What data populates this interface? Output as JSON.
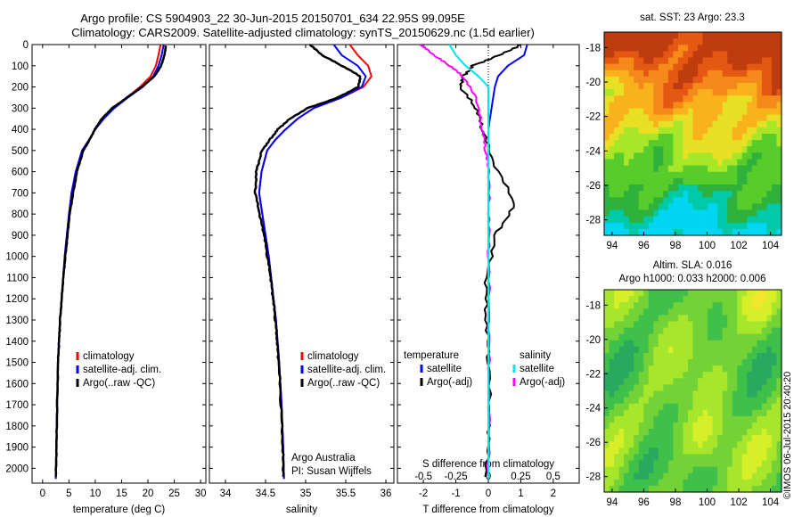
{
  "title_line1": "Argo profile: CS 5904903_22 30-Jun-2015 20150701_634 22.95S 99.095E",
  "title_line2": "Climatology: CARS2009. Satellite-adjusted climatology: synTS_20150629.nc (1.5d earlier)",
  "timestamp": "©IMOS 06-Jul-2015 20:40:20",
  "colors": {
    "climatology": "#ff0000",
    "satellite": "#0000ff",
    "argo": "#000000",
    "satellite_salinity": "#00e5e5",
    "argo_salinity": "#ff00ff"
  },
  "chart_data": [
    {
      "type": "line",
      "xlabel": "temperature (deg C)",
      "xlim": [
        -2,
        31
      ],
      "ylim": [
        0,
        2070
      ],
      "xticks": [
        "0",
        "5",
        "10",
        "15",
        "20",
        "25",
        "30"
      ],
      "yticks": [
        "0",
        "100",
        "200",
        "300",
        "400",
        "500",
        "600",
        "700",
        "800",
        "900",
        "1000",
        "1100",
        "1200",
        "1300",
        "1400",
        "1500",
        "1600",
        "1700",
        "1800",
        "1900",
        "2000"
      ],
      "legend": [
        "climatology",
        "satellite-adj. clim.",
        "Argo(..raw -QC)"
      ],
      "series": [
        {
          "name": "climatology",
          "x": [
            22.4,
            22.0,
            21.5,
            20.5,
            18.5,
            16.0,
            13.5,
            11.5,
            10.0,
            8.8,
            7.5,
            6.3,
            5.5,
            5.0,
            4.6,
            4.2,
            3.9,
            3.6,
            3.3,
            3.1,
            2.9,
            2.75,
            2.6,
            2.5
          ],
          "y": [
            0,
            50,
            100,
            150,
            200,
            250,
            300,
            350,
            400,
            450,
            500,
            600,
            700,
            800,
            900,
            1000,
            1100,
            1200,
            1300,
            1400,
            1500,
            1700,
            1900,
            2050
          ]
        },
        {
          "name": "satellite-adj. clim.",
          "x": [
            23.0,
            22.6,
            22.0,
            21.0,
            19.0,
            16.2,
            13.6,
            11.6,
            10.0,
            8.8,
            7.5,
            6.3,
            5.5,
            5.0,
            4.6,
            4.2,
            3.9,
            3.6,
            3.3,
            3.1,
            2.9,
            2.75,
            2.6,
            2.5
          ],
          "y": [
            0,
            50,
            100,
            150,
            200,
            250,
            300,
            350,
            400,
            450,
            500,
            600,
            700,
            800,
            900,
            1000,
            1100,
            1200,
            1300,
            1400,
            1500,
            1700,
            1900,
            2050
          ]
        },
        {
          "name": "Argo(..raw -QC)",
          "x": [
            23.4,
            23.1,
            22.5,
            21.2,
            18.8,
            16.0,
            13.2,
            11.2,
            9.9,
            8.9,
            7.7,
            6.5,
            5.8,
            5.1,
            4.7,
            4.3,
            3.9,
            3.6,
            3.3,
            3.1,
            2.9,
            2.75,
            2.6,
            2.5
          ],
          "y": [
            5,
            50,
            100,
            150,
            200,
            250,
            300,
            350,
            400,
            450,
            500,
            600,
            700,
            800,
            900,
            1000,
            1100,
            1200,
            1300,
            1400,
            1500,
            1700,
            1900,
            2040
          ]
        }
      ]
    },
    {
      "type": "line",
      "xlabel": "salinity",
      "xlim": [
        33.8,
        36.1
      ],
      "ylim": [
        0,
        2070
      ],
      "xticks": [
        "34",
        "34.5",
        "35",
        "35.5",
        "36"
      ],
      "legend": [
        "climatology",
        "satellite-adj. clim.",
        "Argo(..raw -QC)"
      ],
      "annotations": [
        "Argo Australia",
        "PI: Susan Wijffels"
      ],
      "series": [
        {
          "name": "climatology",
          "x": [
            35.55,
            35.65,
            35.78,
            35.82,
            35.72,
            35.45,
            35.1,
            34.9,
            34.75,
            34.62,
            34.52,
            34.45,
            34.42,
            34.46,
            34.5,
            34.54,
            34.57,
            34.6,
            34.63,
            34.65,
            34.67,
            34.7,
            34.72,
            34.73
          ],
          "y": [
            0,
            50,
            100,
            150,
            200,
            250,
            300,
            350,
            400,
            450,
            500,
            600,
            700,
            800,
            900,
            1000,
            1100,
            1200,
            1300,
            1400,
            1500,
            1700,
            1900,
            2050
          ]
        },
        {
          "name": "satellite-adj. clim.",
          "x": [
            35.35,
            35.45,
            35.65,
            35.75,
            35.7,
            35.45,
            35.1,
            34.9,
            34.75,
            34.62,
            34.52,
            34.45,
            34.42,
            34.46,
            34.5,
            34.54,
            34.57,
            34.6,
            34.63,
            34.65,
            34.67,
            34.7,
            34.72,
            34.73
          ],
          "y": [
            0,
            50,
            100,
            150,
            200,
            250,
            300,
            350,
            400,
            450,
            500,
            600,
            700,
            800,
            900,
            1000,
            1100,
            1200,
            1300,
            1400,
            1500,
            1700,
            1900,
            2050
          ]
        },
        {
          "name": "Argo(..raw -QC)",
          "x": [
            35.05,
            35.2,
            35.45,
            35.68,
            35.65,
            35.4,
            35.02,
            34.8,
            34.65,
            34.55,
            34.45,
            34.38,
            34.37,
            34.42,
            34.48,
            34.52,
            34.56,
            34.59,
            34.62,
            34.64,
            34.66,
            34.69,
            34.71,
            34.72
          ],
          "y": [
            0,
            50,
            100,
            150,
            200,
            250,
            300,
            350,
            400,
            450,
            500,
            600,
            700,
            800,
            900,
            1000,
            1100,
            1200,
            1300,
            1400,
            1500,
            1700,
            1900,
            2040
          ]
        }
      ]
    },
    {
      "type": "line",
      "xlabel": "T difference from climatology",
      "xlabel_top": "S difference from climatology",
      "xlim": [
        -2.8,
        2.8
      ],
      "ylim": [
        0,
        2070
      ],
      "xticks": [
        "-2",
        "-1",
        "0",
        "1",
        "2"
      ],
      "xticks_top": [
        "-0.5",
        "-0.25",
        "0",
        "0.25",
        "0.5"
      ],
      "legend_temperature": [
        "temperature",
        "satellite",
        "Argo(-adj)"
      ],
      "legend_salinity": [
        "salinity",
        "satellite",
        "Argo(-adj)"
      ],
      "series": [
        {
          "name": "satellite",
          "x": [
            1.2,
            1.1,
            0.6,
            0.3,
            0.2,
            0.1,
            0.0,
            0.0,
            0.0,
            0.0,
            0.0,
            0.0,
            0.0,
            0.0,
            0.0
          ],
          "y": [
            0,
            50,
            100,
            150,
            200,
            300,
            400,
            500,
            700,
            900,
            1100,
            1300,
            1500,
            1800,
            2050
          ]
        },
        {
          "name": "Argo(-adj)",
          "x": [
            1.0,
            0.3,
            -0.5,
            -0.8,
            -0.9,
            -0.4,
            -0.2,
            0.1,
            0.8,
            0.2,
            -0.1,
            -0.1,
            0.0,
            0.0,
            -0.1
          ],
          "y": [
            0,
            50,
            100,
            150,
            200,
            300,
            400,
            550,
            750,
            900,
            1100,
            1300,
            1500,
            1800,
            2040
          ]
        },
        {
          "name": "satellite",
          "x": [
            -1.2,
            -1.0,
            -0.7,
            -0.3,
            0.0,
            0.0,
            0.0,
            0.0,
            0.0,
            0.0,
            0.0,
            0.0,
            0.0,
            0.0
          ],
          "y": [
            0,
            50,
            100,
            150,
            200,
            300,
            400,
            500,
            700,
            900,
            1100,
            1300,
            1500,
            2050
          ]
        },
        {
          "name": "Argo(-adj)",
          "x": [
            -2.1,
            -1.7,
            -1.2,
            -0.8,
            -0.4,
            -0.2,
            -0.1,
            0.0,
            0.0,
            0.0,
            0.0,
            0.0,
            0.0
          ],
          "y": [
            0,
            50,
            100,
            150,
            250,
            400,
            500,
            600,
            800,
            1000,
            1300,
            1600,
            2040
          ]
        }
      ]
    },
    {
      "type": "heatmap",
      "title": "sat. SST: 23 Argo: 23.3",
      "xlim": [
        93.5,
        104.7
      ],
      "ylim": [
        -28.9,
        -17.1
      ],
      "xticks": [
        "94",
        "96",
        "98",
        "100",
        "102",
        "104"
      ],
      "yticks": [
        "-18",
        "-20",
        "-22",
        "-24",
        "-26",
        "-28"
      ],
      "palette": [
        "#00d6f2",
        "#00c9a8",
        "#2fb13c",
        "#57cc2b",
        "#a8e629",
        "#e8e024",
        "#f9b21c",
        "#f5891a",
        "#e45813",
        "#bf3c0e"
      ]
    },
    {
      "type": "heatmap",
      "title": "Altim. SLA: 0.016",
      "subtitle": "Argo h1000: 0.033 h2000: 0.006",
      "xlim": [
        93.5,
        104.7
      ],
      "ylim": [
        -28.9,
        -17.1
      ],
      "xticks": [
        "94",
        "96",
        "98",
        "100",
        "102",
        "104"
      ],
      "yticks": [
        "-18",
        "-20",
        "-22",
        "-24",
        "-26",
        "-28"
      ],
      "palette": [
        "#29a85f",
        "#3fc04b",
        "#72d236",
        "#a8e62c",
        "#d6ef28",
        "#f2e62c",
        "#f7c722"
      ]
    }
  ]
}
